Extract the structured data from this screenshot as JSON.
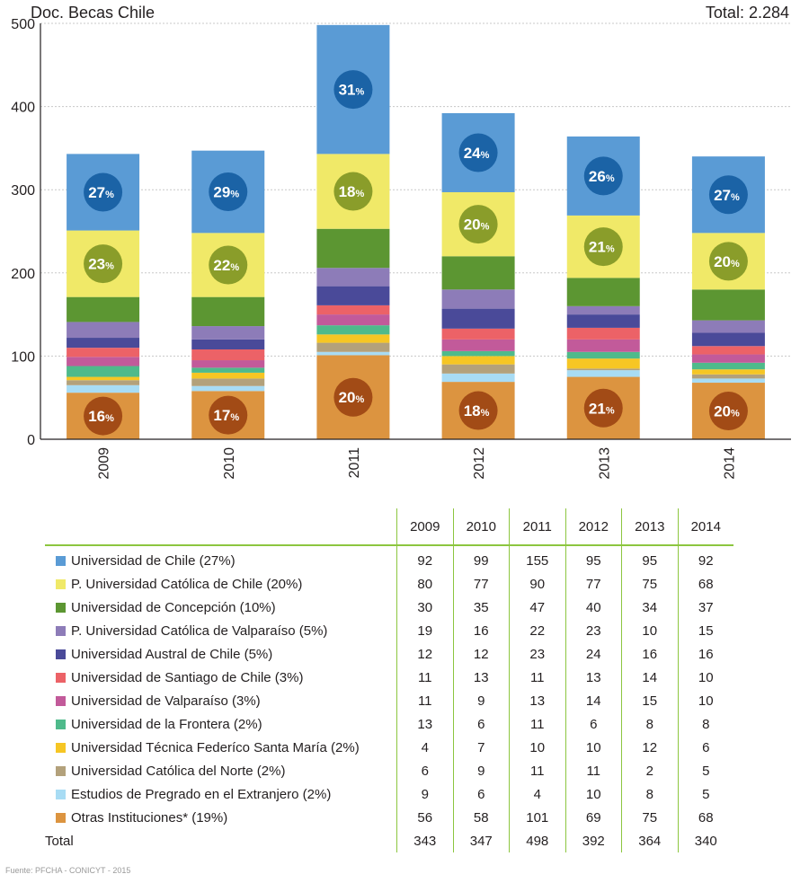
{
  "header": {
    "title": "Doc. Becas Chile",
    "total": "Total: 2.284"
  },
  "table": {
    "years": [
      "2009",
      "2010",
      "2011",
      "2012",
      "2013",
      "2014"
    ],
    "rows": [
      {
        "name": "Universidad de Chile (27%)",
        "color": "#5a9bd5",
        "values": [
          "92",
          "99",
          "155",
          "95",
          "95",
          "92"
        ]
      },
      {
        "name": "P. Universidad Católica de Chile (20%)",
        "color": "#f0e968",
        "values": [
          "80",
          "77",
          "90",
          "77",
          "75",
          "68"
        ]
      },
      {
        "name": "Universidad de Concepción (10%)",
        "color": "#5c9632",
        "values": [
          "30",
          "35",
          "47",
          "40",
          "34",
          "37"
        ]
      },
      {
        "name": "P. Universidad Católica de Valparaíso (5%)",
        "color": "#8d7cb8",
        "values": [
          "19",
          "16",
          "22",
          "23",
          "10",
          "15"
        ]
      },
      {
        "name": "Universidad Austral de Chile (5%)",
        "color": "#4a4a99",
        "values": [
          "12",
          "12",
          "23",
          "24",
          "16",
          "16"
        ]
      },
      {
        "name": "Universidad de Santiago de Chile (3%)",
        "color": "#ec6267",
        "values": [
          "11",
          "13",
          "11",
          "13",
          "14",
          "10"
        ]
      },
      {
        "name": "Universidad de Valparaíso (3%)",
        "color": "#c25a9a",
        "values": [
          "11",
          "9",
          "13",
          "14",
          "15",
          "10"
        ]
      },
      {
        "name": "Universidad de la Frontera (2%)",
        "color": "#4fba8b",
        "values": [
          "13",
          "6",
          "11",
          "6",
          "8",
          "8"
        ]
      },
      {
        "name": "Universidad Técnica Federíco Santa María (2%)",
        "color": "#f6c624",
        "values": [
          "4",
          "7",
          "10",
          "10",
          "12",
          "6"
        ]
      },
      {
        "name": "Universidad Católica del Norte (2%)",
        "color": "#b3a17b",
        "values": [
          "6",
          "9",
          "11",
          "11",
          "2",
          "5"
        ]
      },
      {
        "name": "Estudios de Pregrado en el Extranjero (2%)",
        "color": "#a8dcf4",
        "values": [
          "9",
          "6",
          "4",
          "10",
          "8",
          "5"
        ]
      },
      {
        "name": "Otras Instituciones* (19%)",
        "color": "#dc9440",
        "values": [
          "56",
          "58",
          "101",
          "69",
          "75",
          "68"
        ]
      }
    ],
    "total": {
      "label": "Total",
      "values": [
        "343",
        "347",
        "498",
        "392",
        "364",
        "340"
      ]
    }
  },
  "source": "Fuente: PFCHA - CONICYT - 2015",
  "chart_data": {
    "type": "bar",
    "stacked": true,
    "categories": [
      "2009",
      "2010",
      "2011",
      "2012",
      "2013",
      "2014"
    ],
    "ylim": [
      0,
      500
    ],
    "yticks": [
      "0",
      "100",
      "200",
      "300",
      "400",
      "500"
    ],
    "grid": true,
    "series": [
      {
        "name": "Otras Instituciones* (19%)",
        "color": "#dc9440",
        "values": [
          56,
          58,
          101,
          69,
          75,
          68
        ]
      },
      {
        "name": "Estudios de Pregrado en el Extranjero (2%)",
        "color": "#a8dcf4",
        "values": [
          9,
          6,
          4,
          10,
          8,
          5
        ]
      },
      {
        "name": "Universidad Católica del Norte (2%)",
        "color": "#b3a17b",
        "values": [
          6,
          9,
          11,
          11,
          2,
          5
        ]
      },
      {
        "name": "Universidad Técnica Federíco Santa María (2%)",
        "color": "#f6c624",
        "values": [
          4,
          7,
          10,
          10,
          12,
          6
        ]
      },
      {
        "name": "Universidad de la Frontera (2%)",
        "color": "#4fba8b",
        "values": [
          13,
          6,
          11,
          6,
          8,
          8
        ]
      },
      {
        "name": "Universidad de Valparaíso (3%)",
        "color": "#c25a9a",
        "values": [
          11,
          9,
          13,
          14,
          15,
          10
        ]
      },
      {
        "name": "Universidad de Santiago de Chile (3%)",
        "color": "#ec6267",
        "values": [
          11,
          13,
          11,
          13,
          14,
          10
        ]
      },
      {
        "name": "Universidad Austral de Chile (5%)",
        "color": "#4a4a99",
        "values": [
          12,
          12,
          23,
          24,
          16,
          16
        ]
      },
      {
        "name": "P. Universidad Católica de Valparaíso (5%)",
        "color": "#8d7cb8",
        "values": [
          19,
          16,
          22,
          23,
          10,
          15
        ]
      },
      {
        "name": "Universidad de Concepción (10%)",
        "color": "#5c9632",
        "values": [
          30,
          35,
          47,
          40,
          34,
          37
        ]
      },
      {
        "name": "P. Universidad Católica de Chile (20%)",
        "color": "#f0e968",
        "values": [
          80,
          77,
          90,
          77,
          75,
          68
        ]
      },
      {
        "name": "Universidad de Chile (27%)",
        "color": "#5a9bd5",
        "values": [
          92,
          99,
          155,
          95,
          95,
          92
        ]
      }
    ],
    "badges": [
      {
        "series": "Universidad de Chile (27%)",
        "color": "#1b63a6",
        "labels": [
          "27",
          "29",
          "31",
          "24",
          "26",
          "27"
        ]
      },
      {
        "series": "P. Universidad Católica de Chile (20%)",
        "color": "#8a9d2a",
        "labels": [
          "23",
          "22",
          "18",
          "20",
          "21",
          "20"
        ]
      },
      {
        "series": "Otras Instituciones* (19%)",
        "color": "#a24b16",
        "labels": [
          "16",
          "17",
          "20",
          "18",
          "21",
          "20"
        ]
      }
    ],
    "badge_suffix": "%"
  }
}
